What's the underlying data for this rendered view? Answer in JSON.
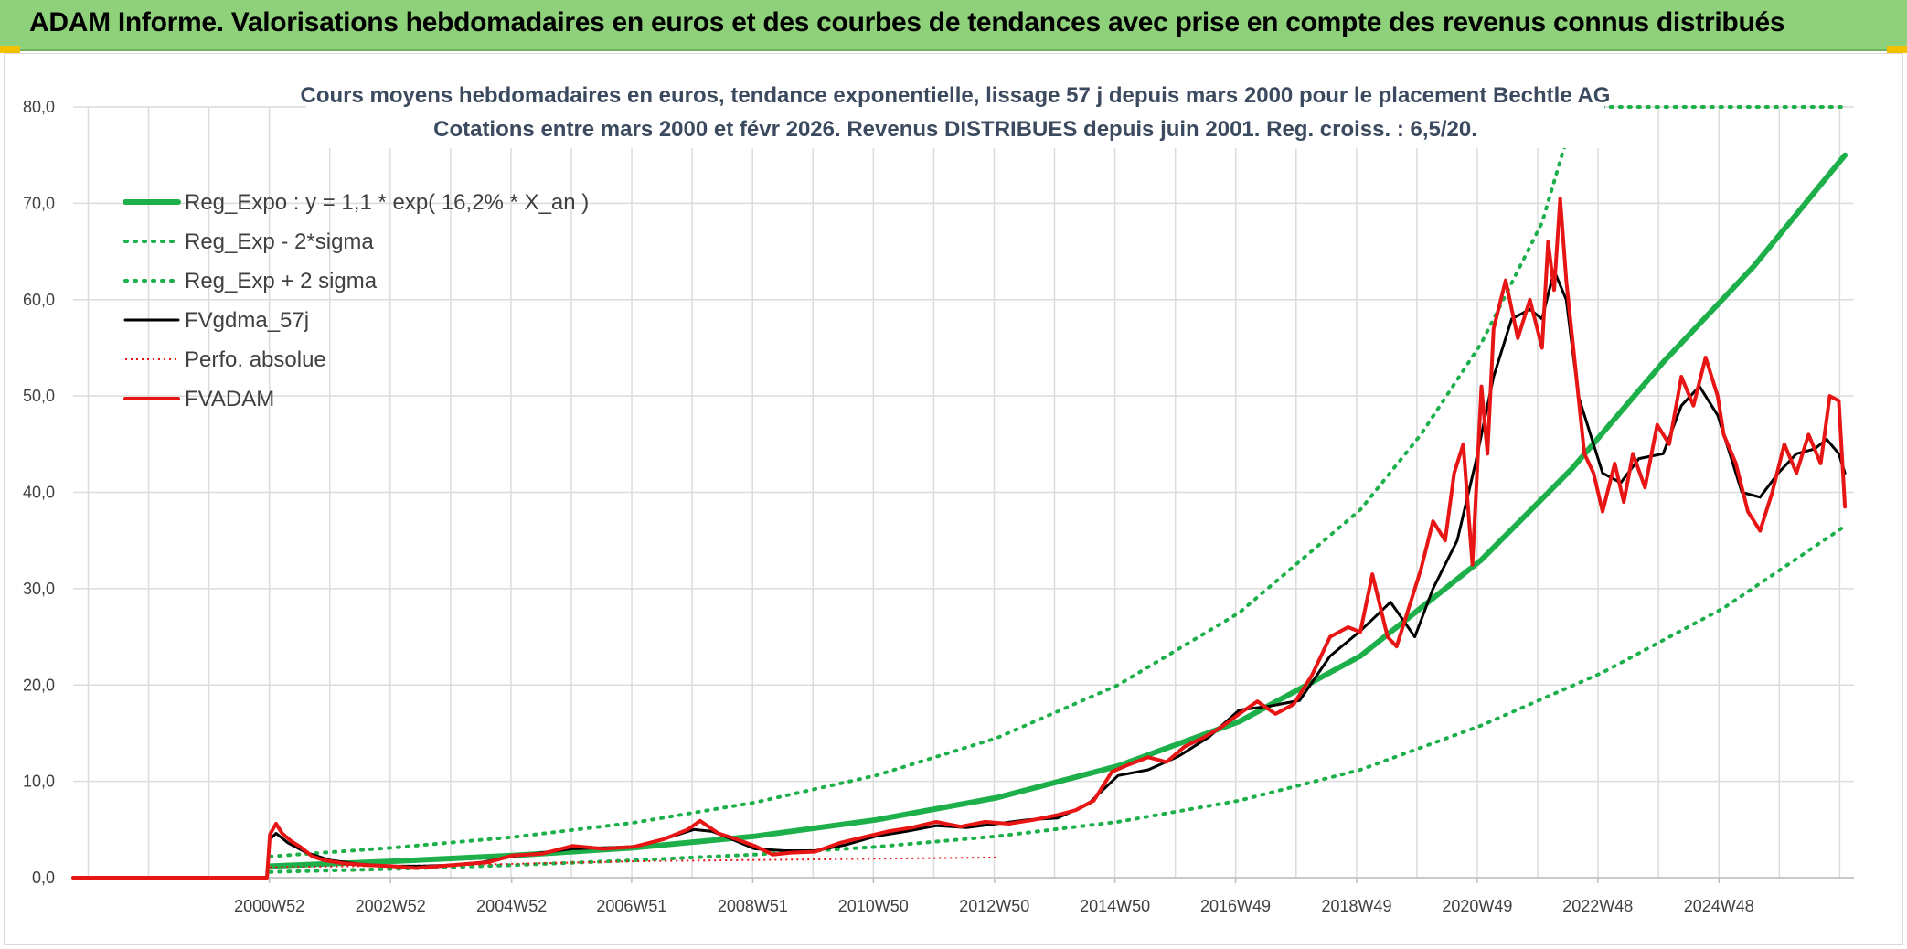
{
  "banner": {
    "title": "ADAM Informe. Valorisations hebdomadaires en euros et des courbes de tendances avec prise en compte des revenus connus distribués"
  },
  "colors": {
    "banner": "#8fd17a",
    "trend": "#1db04a",
    "fv": "#000000",
    "adam": "#e81515",
    "perfo": "#e81515",
    "grid": "#dcdcdc"
  },
  "chart_data": {
    "type": "line",
    "title": "Cours moyens hebdomadaires en euros, tendance exponentielle, lissage 57 j depuis mars 2000 pour le placement Bechtle AG",
    "subtitle": "Cotations entre mars 2000 et févr 2026. Revenus DISTRIBUES depuis juin 2001. Reg. croiss. : 6,5/20.",
    "xlabel": "",
    "ylabel": "",
    "ylim": [
      0,
      80
    ],
    "yticks": [
      "0,0",
      "10,0",
      "20,0",
      "30,0",
      "40,0",
      "50,0",
      "60,0",
      "70,0",
      "80,0"
    ],
    "x_tick_labels": [
      "2000W52",
      "2002W52",
      "2004W52",
      "2006W51",
      "2008W51",
      "2010W50",
      "2012W50",
      "2014W50",
      "2016W49",
      "2018W49",
      "2020W49",
      "2022W48",
      "2024W48"
    ],
    "x_tick_years": [
      1999.99,
      2001.99,
      2003.99,
      2005.97,
      2007.97,
      2009.96,
      2011.96,
      2013.95,
      2015.94,
      2017.94,
      2019.93,
      2021.92,
      2023.92
    ],
    "xlim": [
      1996.75,
      2026.15
    ],
    "grid": true,
    "legend_position": "top-left",
    "legend": [
      {
        "label": "Reg_Expo : y = 1,1 * exp( 16,2% *  X_an )",
        "series": "reg_expo"
      },
      {
        "label": "Reg_Exp - 2*sigma",
        "series": "reg_minus"
      },
      {
        "label": "Reg_Exp + 2 sigma",
        "series": "reg_plus"
      },
      {
        "label": "FVgdma_57j",
        "series": "fvgdma"
      },
      {
        "label": "Perfo. absolue",
        "series": "perfo"
      },
      {
        "label": "FVADAM",
        "series": "fvadam"
      }
    ],
    "series": [
      {
        "key": "reg_expo",
        "x": [
          2000.0,
          2002.0,
          2004.0,
          2006.0,
          2008.0,
          2010.0,
          2012.0,
          2014.0,
          2016.0,
          2018.0,
          2020.0,
          2021.5,
          2023.0,
          2024.5,
          2026.0
        ],
        "y": [
          1.2,
          1.7,
          2.3,
          3.1,
          4.3,
          6.0,
          8.3,
          11.6,
          16.2,
          23.0,
          33.0,
          42.5,
          53.5,
          63.5,
          75.0
        ]
      },
      {
        "key": "reg_minus",
        "x": [
          2000.0,
          2002.0,
          2004.0,
          2006.0,
          2008.0,
          2010.0,
          2012.0,
          2014.0,
          2016.0,
          2018.0,
          2020.0,
          2022.0,
          2024.0,
          2026.0
        ],
        "y": [
          0.6,
          0.9,
          1.3,
          1.8,
          2.4,
          3.2,
          4.3,
          5.8,
          8.0,
          11.2,
          15.8,
          21.3,
          28.0,
          36.5
        ]
      },
      {
        "key": "reg_plus",
        "x": [
          2000.0,
          2002.0,
          2004.0,
          2006.0,
          2008.0,
          2010.0,
          2012.0,
          2014.0,
          2016.0,
          2018.0,
          2019.0,
          2020.0,
          2021.0,
          2021.35,
          2021.65,
          2026.0
        ],
        "y": [
          2.2,
          3.1,
          4.2,
          5.7,
          7.8,
          10.6,
          14.5,
          20.0,
          27.5,
          38.2,
          46.0,
          55.5,
          68.0,
          75.5,
          80.0,
          80.0
        ]
      },
      {
        "key": "fvgdma",
        "x": [
          2000.0,
          2000.1,
          2000.3,
          2000.6,
          2001.0,
          2001.5,
          2002.0,
          2002.5,
          2003.0,
          2003.5,
          2004.0,
          2004.5,
          2005.0,
          2005.5,
          2006.0,
          2006.5,
          2007.0,
          2007.3,
          2007.7,
          2008.0,
          2008.5,
          2009.0,
          2009.5,
          2010.0,
          2010.5,
          2011.0,
          2011.5,
          2012.0,
          2012.5,
          2013.0,
          2013.5,
          2014.0,
          2014.5,
          2015.0,
          2015.5,
          2016.0,
          2016.5,
          2017.0,
          2017.5,
          2018.0,
          2018.5,
          2018.9,
          2019.2,
          2019.6,
          2019.9,
          2020.2,
          2020.5,
          2020.8,
          2021.0,
          2021.2,
          2021.4,
          2021.6,
          2022.0,
          2022.3,
          2022.6,
          2023.0,
          2023.3,
          2023.6,
          2023.9,
          2024.1,
          2024.3,
          2024.6,
          2024.9,
          2025.2,
          2025.5,
          2025.7,
          2025.9,
          2026.0
        ],
        "y": [
          4.0,
          4.6,
          3.6,
          2.6,
          1.8,
          1.4,
          1.2,
          1.2,
          1.3,
          1.6,
          2.2,
          2.6,
          3.0,
          3.1,
          3.2,
          4.0,
          5.0,
          4.8,
          3.8,
          3.0,
          2.8,
          2.8,
          3.4,
          4.3,
          4.8,
          5.4,
          5.2,
          5.6,
          6.0,
          6.2,
          7.6,
          10.6,
          11.2,
          12.6,
          14.6,
          17.4,
          17.8,
          18.4,
          23.0,
          25.6,
          28.6,
          25.0,
          30.0,
          35.0,
          43.0,
          52.0,
          58.0,
          59.0,
          58.0,
          63.0,
          60.0,
          50.0,
          42.0,
          41.0,
          43.5,
          44.0,
          49.0,
          51.0,
          48.0,
          44.0,
          40.0,
          39.5,
          42.0,
          44.0,
          44.5,
          45.5,
          44.0,
          42.0
        ]
      },
      {
        "key": "perfo",
        "x": [
          2000.0,
          2001.5,
          2003.0,
          2004.5,
          2006.0,
          2007.5,
          2009.0,
          2010.5,
          2012.0
        ],
        "y": [
          1.1,
          1.2,
          1.3,
          1.5,
          1.7,
          1.8,
          1.9,
          2.0,
          2.1
        ]
      },
      {
        "key": "fvadam",
        "x": [
          1996.75,
          1999.95,
          2000.0,
          2000.1,
          2000.2,
          2000.35,
          2000.5,
          2000.7,
          2000.9,
          2001.2,
          2001.6,
          2002.0,
          2002.4,
          2002.8,
          2003.2,
          2003.6,
          2004.0,
          2004.5,
          2005.0,
          2005.5,
          2006.0,
          2006.5,
          2006.9,
          2007.1,
          2007.4,
          2007.7,
          2008.0,
          2008.3,
          2008.6,
          2009.0,
          2009.4,
          2009.8,
          2010.2,
          2010.6,
          2011.0,
          2011.4,
          2011.8,
          2012.2,
          2012.6,
          2013.0,
          2013.3,
          2013.6,
          2013.9,
          2014.2,
          2014.5,
          2014.8,
          2015.1,
          2015.4,
          2015.7,
          2016.0,
          2016.3,
          2016.6,
          2016.9,
          2017.2,
          2017.5,
          2017.8,
          2018.0,
          2018.2,
          2018.45,
          2018.6,
          2018.8,
          2019.0,
          2019.2,
          2019.4,
          2019.55,
          2019.7,
          2019.85,
          2020.0,
          2020.1,
          2020.2,
          2020.4,
          2020.6,
          2020.8,
          2021.0,
          2021.1,
          2021.2,
          2021.3,
          2021.4,
          2021.5,
          2021.6,
          2021.7,
          2021.85,
          2022.0,
          2022.2,
          2022.35,
          2022.5,
          2022.7,
          2022.9,
          2023.1,
          2023.3,
          2023.5,
          2023.7,
          2023.9,
          2024.0,
          2024.2,
          2024.4,
          2024.6,
          2024.8,
          2025.0,
          2025.2,
          2025.4,
          2025.6,
          2025.75,
          2025.9,
          2026.0
        ],
        "y": [
          0.0,
          0.0,
          4.5,
          5.6,
          4.6,
          3.8,
          3.2,
          2.2,
          1.8,
          1.5,
          1.3,
          1.2,
          1.0,
          1.2,
          1.4,
          1.6,
          2.3,
          2.5,
          3.3,
          3.0,
          3.2,
          4.0,
          5.0,
          5.9,
          4.6,
          4.0,
          3.3,
          2.4,
          2.6,
          2.7,
          3.6,
          4.2,
          4.8,
          5.2,
          5.8,
          5.3,
          5.8,
          5.6,
          6.0,
          6.5,
          7.0,
          8.0,
          11.0,
          11.8,
          12.5,
          12.0,
          13.6,
          14.5,
          15.6,
          17.0,
          18.3,
          17.0,
          18.0,
          21.0,
          25.0,
          26.0,
          25.5,
          31.5,
          25.0,
          24.0,
          28.0,
          32.0,
          37.0,
          35.0,
          42.0,
          45.0,
          32.5,
          51.0,
          44.0,
          57.0,
          62.0,
          56.0,
          60.0,
          55.0,
          66.0,
          61.0,
          70.5,
          62.0,
          56.0,
          50.0,
          44.0,
          42.0,
          38.0,
          43.0,
          39.0,
          44.0,
          40.5,
          47.0,
          45.0,
          52.0,
          49.0,
          54.0,
          50.0,
          46.0,
          43.0,
          38.0,
          36.0,
          40.0,
          45.0,
          42.0,
          46.0,
          43.0,
          50.0,
          49.5,
          38.5
        ]
      }
    ]
  }
}
